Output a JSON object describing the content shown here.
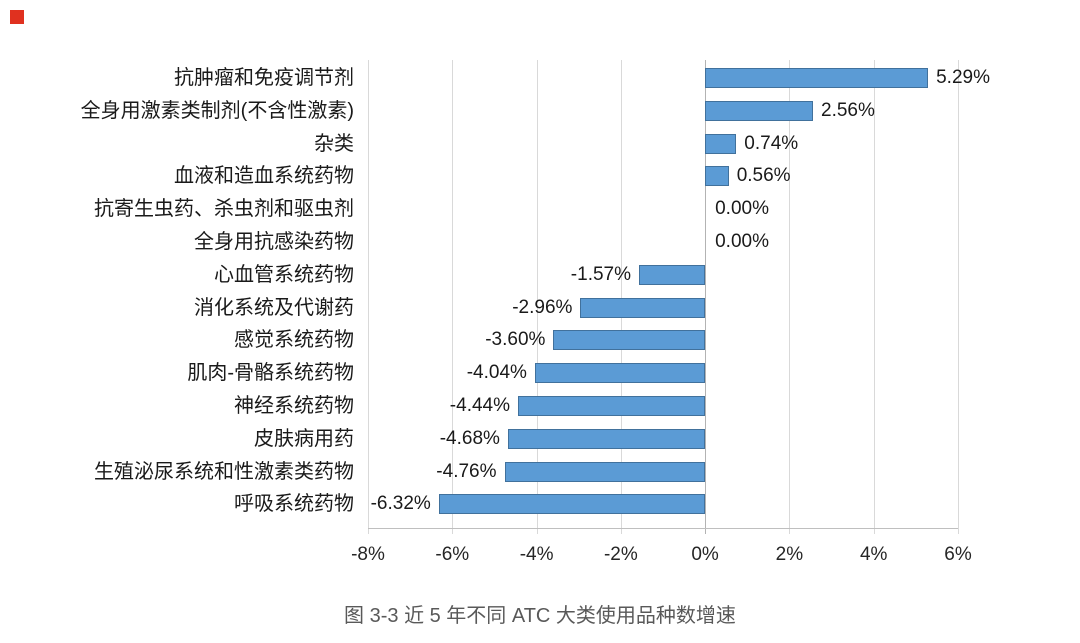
{
  "brand": {
    "color": "#e0311f"
  },
  "caption_text": "图 3-3 近 5 年不同 ATC 大类使用品种数增速",
  "chart_data": {
    "type": "bar",
    "orientation": "horizontal",
    "title": "",
    "caption": "图 3-3 近 5 年不同 ATC 大类使用品种数增速",
    "categories": [
      "抗肿瘤和免疫调节剂",
      "全身用激素类制剂(不含性激素)",
      "杂类",
      "血液和造血系统药物",
      "抗寄生虫药、杀虫剂和驱虫剂",
      "全身用抗感染药物",
      "心血管系统药物",
      "消化系统及代谢药",
      "感觉系统药物",
      "肌肉-骨骼系统药物",
      "神经系统药物",
      "皮肤病用药",
      "生殖泌尿系统和性激素类药物",
      "呼吸系统药物"
    ],
    "values": [
      5.29,
      2.56,
      0.74,
      0.56,
      0.0,
      0.0,
      -1.57,
      -2.96,
      -3.6,
      -4.04,
      -4.44,
      -4.68,
      -4.76,
      -6.32
    ],
    "value_labels": [
      "5.29%",
      "2.56%",
      "0.74%",
      "0.56%",
      "0.00%",
      "0.00%",
      "-1.57%",
      "-2.96%",
      "-3.60%",
      "-4.04%",
      "-4.44%",
      "-4.68%",
      "-4.76%",
      "-6.32%"
    ],
    "xlabel": "",
    "ylabel": "",
    "xlim": [
      -8,
      6
    ],
    "x_tick_values": [
      -8,
      -6,
      -4,
      -2,
      0,
      2,
      4,
      6
    ],
    "x_ticks": [
      "-8%",
      "-6%",
      "-4%",
      "-2%",
      "0%",
      "2%",
      "4%",
      "6%"
    ],
    "grid": true,
    "legend": false,
    "colors": {
      "bar_fill": "#5b9bd5",
      "bar_border": "#41719c",
      "gridline": "#d9d9d9",
      "axis_line": "#bfbfbf",
      "label_text": "#1a1a1a",
      "caption_text": "#595959",
      "brand_red": "#e0311f"
    }
  }
}
